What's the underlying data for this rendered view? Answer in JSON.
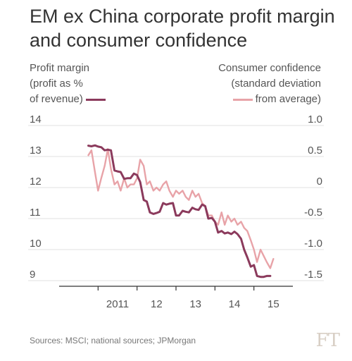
{
  "title": "EM ex China corporate profit margin and consumer confidence",
  "legend": {
    "left_lines": [
      "Profit margin",
      "(profit as %",
      "of revenue)"
    ],
    "right_lines": [
      "Consumer confidence",
      "(standard deviation",
      "from average)"
    ]
  },
  "source": "Sources: MSCI; national sources; JPMorgan",
  "brand": "FT",
  "colors": {
    "profit": "#8b3a5c",
    "confidence": "#e8a3a8",
    "grid": "#e2e2e2",
    "axis": "#333333"
  },
  "chart_data": {
    "type": "line",
    "x_ticks": [
      {
        "label": "2011",
        "x": 2011.5
      },
      {
        "label": "12",
        "x": 2012.5
      },
      {
        "label": "13",
        "x": 2013.5
      },
      {
        "label": "14",
        "x": 2014.5
      },
      {
        "label": "15",
        "x": 2015.5
      }
    ],
    "xlim": [
      2010.0,
      2016.0
    ],
    "y_left": {
      "ticks": [
        14,
        13,
        12,
        11,
        10,
        9
      ],
      "lim": [
        9,
        14
      ]
    },
    "y_right": {
      "ticks": [
        1.0,
        0.5,
        0,
        -0.5,
        -1.0,
        -1.5
      ],
      "labels": [
        "1.0",
        "0.5",
        "0",
        "-0.5",
        "-1.0",
        "-1.5"
      ],
      "lim": [
        -1.5,
        1.0
      ]
    },
    "series": [
      {
        "name": "Profit margin",
        "axis": "left",
        "points": [
          [
            2010.75,
            13.35
          ],
          [
            2010.83,
            13.33
          ],
          [
            2010.92,
            13.36
          ],
          [
            2011.0,
            13.32
          ],
          [
            2011.08,
            13.3
          ],
          [
            2011.17,
            13.2
          ],
          [
            2011.25,
            13.22
          ],
          [
            2011.33,
            13.2
          ],
          [
            2011.42,
            12.55
          ],
          [
            2011.5,
            12.52
          ],
          [
            2011.58,
            12.5
          ],
          [
            2011.67,
            12.28
          ],
          [
            2011.75,
            12.3
          ],
          [
            2011.83,
            12.3
          ],
          [
            2011.92,
            12.45
          ],
          [
            2012.0,
            12.4
          ],
          [
            2012.08,
            12.18
          ],
          [
            2012.17,
            11.6
          ],
          [
            2012.25,
            11.55
          ],
          [
            2012.33,
            11.2
          ],
          [
            2012.42,
            11.15
          ],
          [
            2012.5,
            11.18
          ],
          [
            2012.58,
            11.22
          ],
          [
            2012.67,
            11.5
          ],
          [
            2012.75,
            11.45
          ],
          [
            2012.83,
            11.48
          ],
          [
            2012.92,
            11.5
          ],
          [
            2013.0,
            11.1
          ],
          [
            2013.08,
            11.1
          ],
          [
            2013.17,
            11.25
          ],
          [
            2013.25,
            11.22
          ],
          [
            2013.33,
            11.2
          ],
          [
            2013.42,
            11.35
          ],
          [
            2013.5,
            11.3
          ],
          [
            2013.58,
            11.28
          ],
          [
            2013.67,
            11.45
          ],
          [
            2013.75,
            11.4
          ],
          [
            2013.83,
            11.0
          ],
          [
            2013.92,
            11.02
          ],
          [
            2014.0,
            10.9
          ],
          [
            2014.08,
            10.55
          ],
          [
            2014.17,
            10.6
          ],
          [
            2014.25,
            10.52
          ],
          [
            2014.33,
            10.55
          ],
          [
            2014.42,
            10.5
          ],
          [
            2014.5,
            10.58
          ],
          [
            2014.58,
            10.5
          ],
          [
            2014.67,
            10.35
          ],
          [
            2014.75,
            10.0
          ],
          [
            2014.83,
            9.75
          ],
          [
            2014.92,
            9.45
          ],
          [
            2015.0,
            9.5
          ],
          [
            2015.08,
            9.15
          ],
          [
            2015.17,
            9.12
          ],
          [
            2015.25,
            9.12
          ],
          [
            2015.33,
            9.15
          ],
          [
            2015.42,
            9.15
          ]
        ]
      },
      {
        "name": "Consumer confidence",
        "axis": "right",
        "points": [
          [
            2010.75,
            0.52
          ],
          [
            2010.83,
            0.6
          ],
          [
            2010.92,
            0.25
          ],
          [
            2011.0,
            -0.05
          ],
          [
            2011.08,
            0.15
          ],
          [
            2011.17,
            0.35
          ],
          [
            2011.25,
            0.62
          ],
          [
            2011.33,
            0.3
          ],
          [
            2011.42,
            0.05
          ],
          [
            2011.5,
            0.1
          ],
          [
            2011.58,
            -0.05
          ],
          [
            2011.67,
            0.15
          ],
          [
            2011.75,
            0.0
          ],
          [
            2011.83,
            0.05
          ],
          [
            2011.92,
            0.05
          ],
          [
            2012.0,
            0.15
          ],
          [
            2012.08,
            0.45
          ],
          [
            2012.17,
            0.35
          ],
          [
            2012.25,
            0.05
          ],
          [
            2012.33,
            0.1
          ],
          [
            2012.42,
            -0.05
          ],
          [
            2012.5,
            0.0
          ],
          [
            2012.58,
            -0.05
          ],
          [
            2012.67,
            0.05
          ],
          [
            2012.75,
            0.1
          ],
          [
            2012.83,
            -0.05
          ],
          [
            2012.92,
            -0.15
          ],
          [
            2013.0,
            -0.05
          ],
          [
            2013.08,
            -0.1
          ],
          [
            2013.17,
            -0.05
          ],
          [
            2013.25,
            -0.15
          ],
          [
            2013.33,
            -0.2
          ],
          [
            2013.42,
            -0.05
          ],
          [
            2013.5,
            -0.15
          ],
          [
            2013.58,
            -0.1
          ],
          [
            2013.67,
            -0.25
          ],
          [
            2013.75,
            -0.3
          ],
          [
            2013.83,
            -0.45
          ],
          [
            2013.92,
            -0.45
          ],
          [
            2014.0,
            -0.55
          ],
          [
            2014.08,
            -0.6
          ],
          [
            2014.17,
            -0.4
          ],
          [
            2014.25,
            -0.6
          ],
          [
            2014.33,
            -0.45
          ],
          [
            2014.42,
            -0.55
          ],
          [
            2014.5,
            -0.5
          ],
          [
            2014.58,
            -0.6
          ],
          [
            2014.67,
            -0.55
          ],
          [
            2014.75,
            -0.65
          ],
          [
            2014.83,
            -0.7
          ],
          [
            2014.92,
            -0.85
          ],
          [
            2015.0,
            -1.0
          ],
          [
            2015.08,
            -1.2
          ],
          [
            2015.17,
            -1.0
          ],
          [
            2015.25,
            -1.1
          ],
          [
            2015.33,
            -1.2
          ],
          [
            2015.42,
            -1.3
          ],
          [
            2015.5,
            -1.15
          ]
        ]
      }
    ],
    "grid": true,
    "legend_position": "top"
  }
}
